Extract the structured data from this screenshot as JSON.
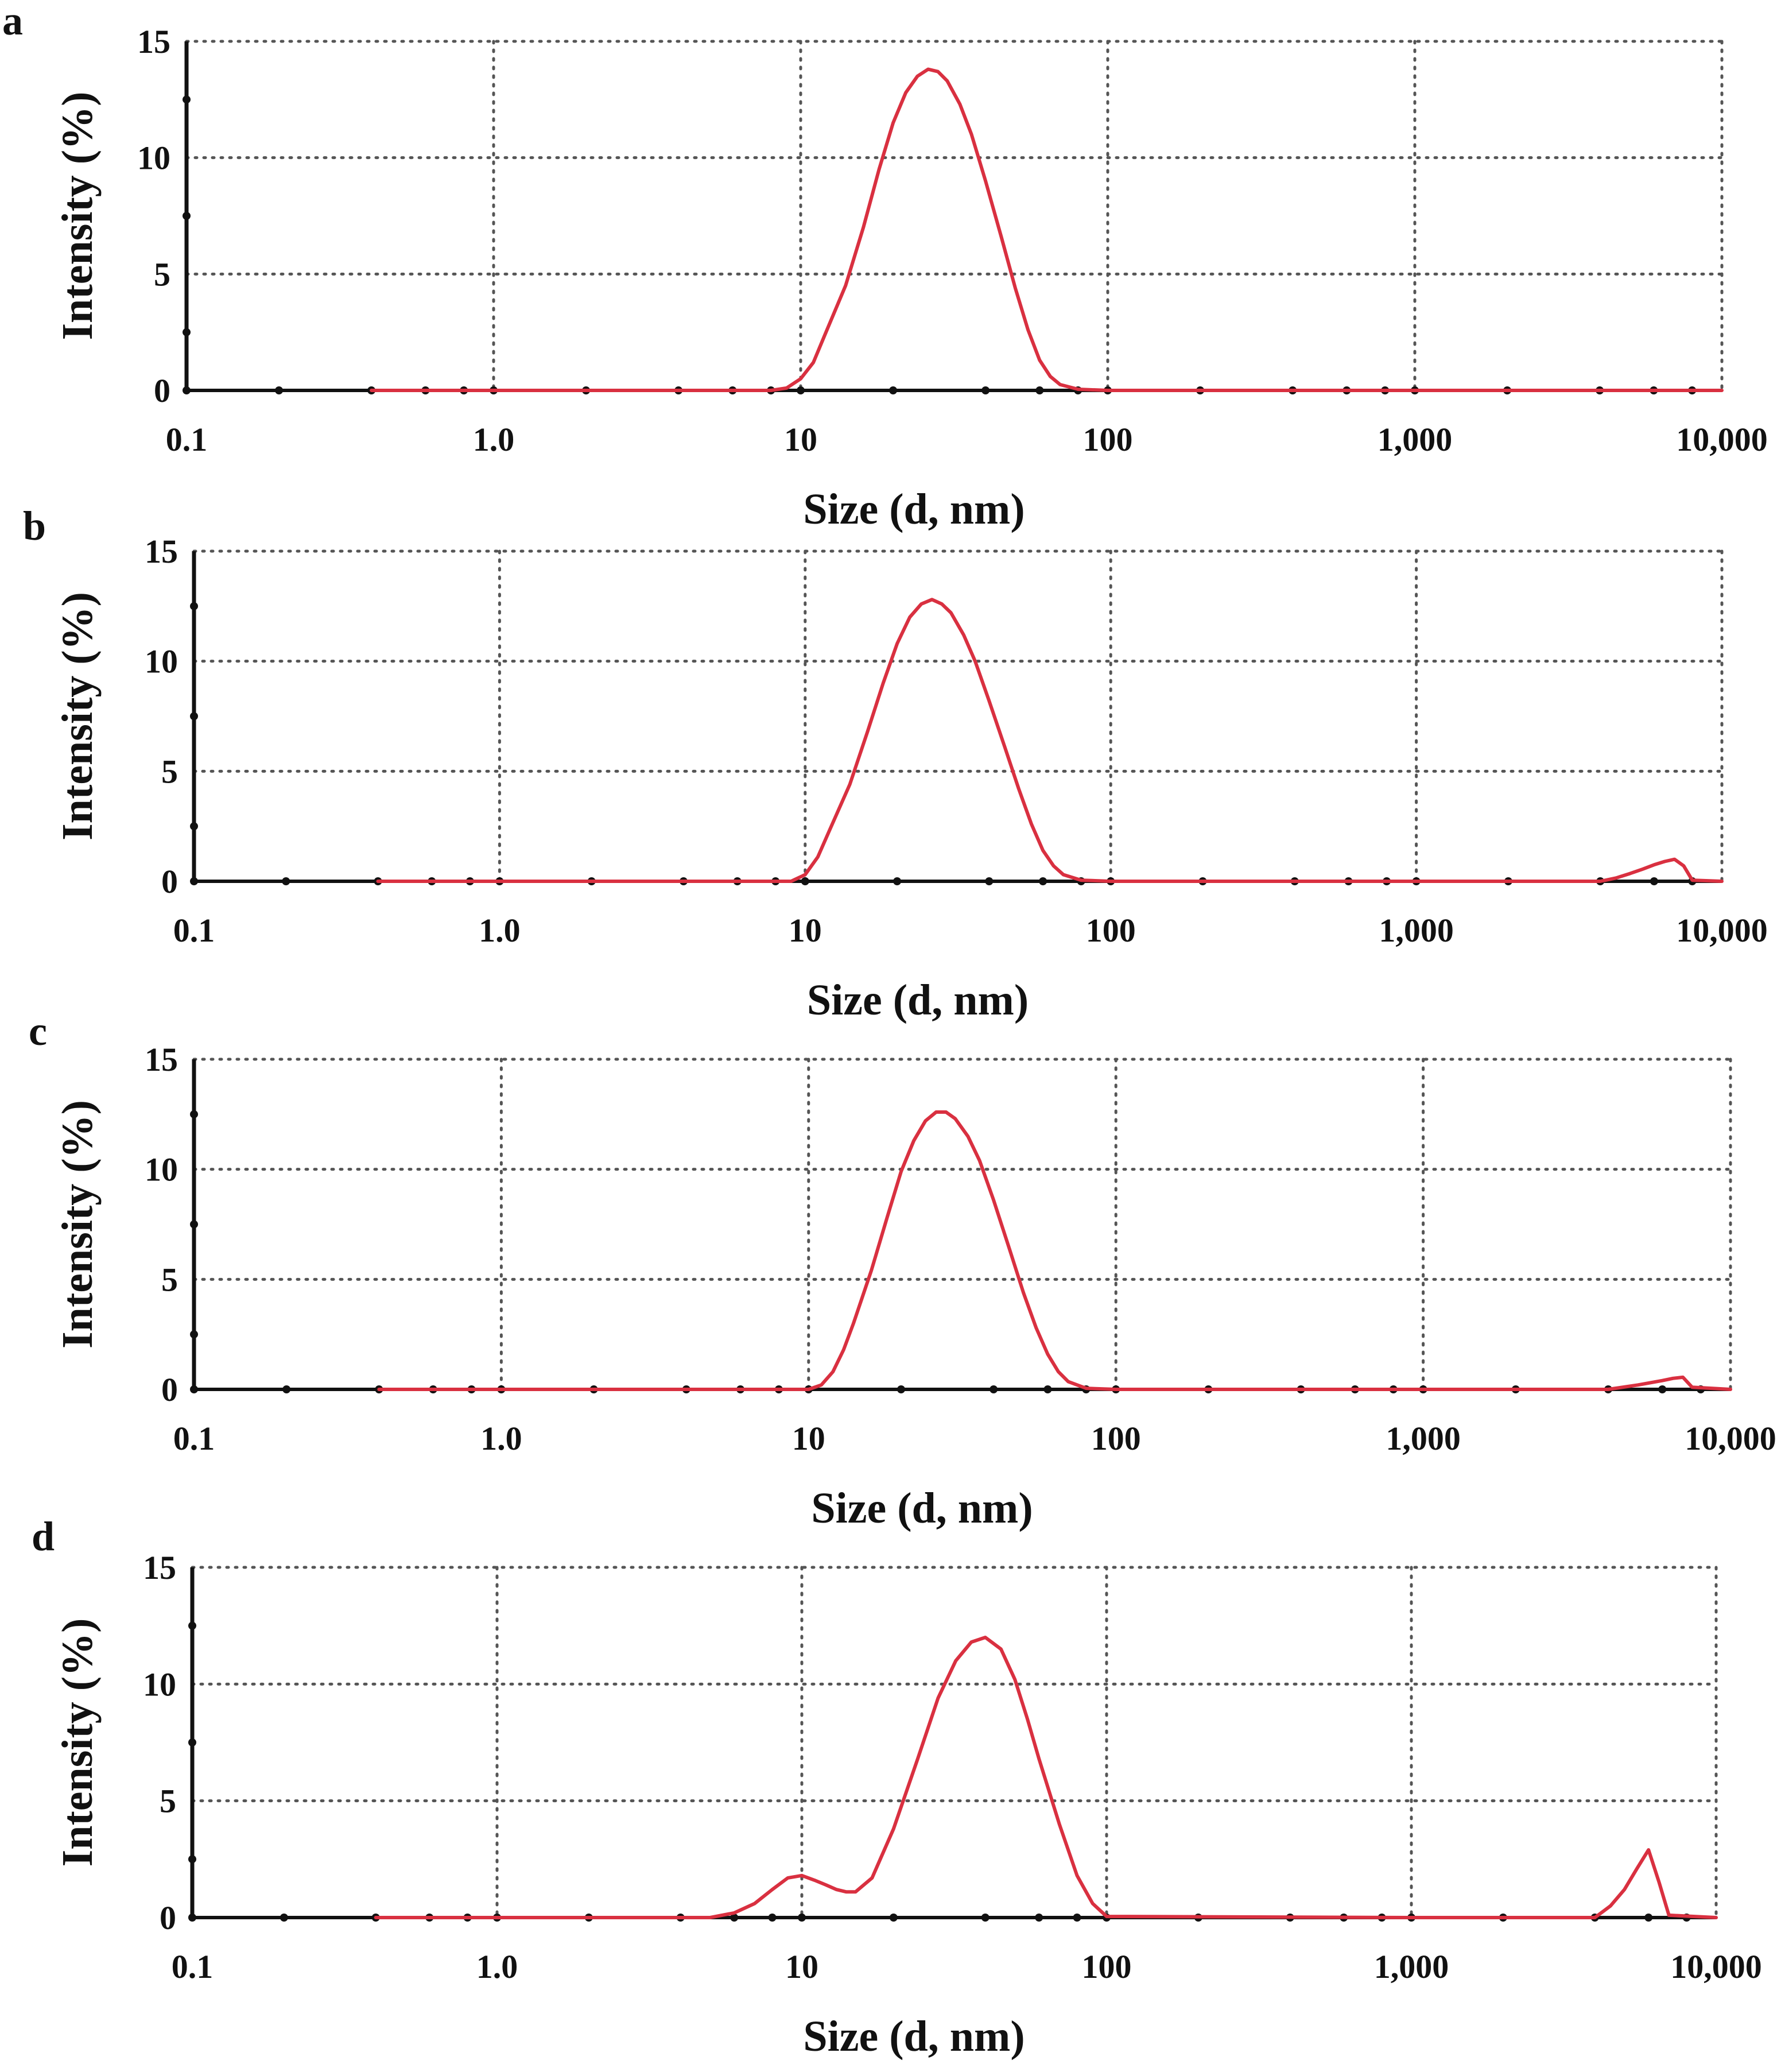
{
  "colors": {
    "curve": "#d93040",
    "axis": "#111111",
    "grid": "#555555"
  },
  "chart_data": [
    {
      "type": "line",
      "panel": "a",
      "xscale": "log",
      "xlabel": "Size (d, nm)",
      "ylabel": "Intensity (%)",
      "xlim": [
        0.1,
        10000
      ],
      "ylim": [
        0,
        15
      ],
      "xticks": [
        0.1,
        1,
        10,
        100,
        1000,
        10000
      ],
      "xtick_labels": [
        "0.1",
        "1.0",
        "10",
        "100",
        "1,000",
        "10,000"
      ],
      "yticks": [
        0,
        5,
        10,
        15
      ],
      "ytick_labels": [
        "0",
        "5",
        "10",
        "15"
      ],
      "grid": true,
      "series": [
        {
          "name": "Intensity",
          "x": [
            0.4,
            5,
            8,
            9,
            10,
            11,
            12,
            14,
            16,
            18,
            20,
            22,
            24,
            26,
            28,
            30,
            33,
            36,
            40,
            45,
            50,
            55,
            60,
            65,
            70,
            80,
            100,
            1000,
            10000
          ],
          "y": [
            0,
            0,
            0,
            0.1,
            0.5,
            1.2,
            2.4,
            4.5,
            7,
            9.5,
            11.5,
            12.8,
            13.5,
            13.8,
            13.7,
            13.3,
            12.3,
            11,
            9,
            6.6,
            4.4,
            2.6,
            1.3,
            0.6,
            0.25,
            0.05,
            0,
            0,
            0
          ]
        }
      ]
    },
    {
      "type": "line",
      "panel": "b",
      "xscale": "log",
      "xlabel": "Size (d, nm)",
      "ylabel": "Intensity (%)",
      "xlim": [
        0.1,
        10000
      ],
      "ylim": [
        0,
        15
      ],
      "xticks": [
        0.1,
        1,
        10,
        100,
        1000,
        10000
      ],
      "xtick_labels": [
        "0.1",
        "1.0",
        "10",
        "100",
        "1,000",
        "10,000"
      ],
      "yticks": [
        0,
        5,
        10,
        15
      ],
      "ytick_labels": [
        "0",
        "5",
        "10",
        "15"
      ],
      "grid": true,
      "series": [
        {
          "name": "Intensity",
          "x": [
            0.4,
            5,
            9,
            10,
            11,
            12,
            14,
            16,
            18,
            20,
            22,
            24,
            26,
            28,
            30,
            33,
            36,
            40,
            45,
            50,
            55,
            60,
            65,
            70,
            80,
            100,
            1000,
            4000,
            4500,
            5000,
            5500,
            6000,
            6500,
            7000,
            7500,
            8000,
            10000
          ],
          "y": [
            0,
            0,
            0,
            0.3,
            1.1,
            2.3,
            4.4,
            6.8,
            9,
            10.8,
            12,
            12.6,
            12.8,
            12.6,
            12.2,
            11.2,
            10,
            8.2,
            6.1,
            4.2,
            2.6,
            1.4,
            0.7,
            0.3,
            0.05,
            0,
            0,
            0,
            0.15,
            0.35,
            0.55,
            0.75,
            0.9,
            1,
            0.7,
            0.05,
            0
          ]
        }
      ]
    },
    {
      "type": "line",
      "panel": "c",
      "xscale": "log",
      "xlabel": "Size (d, nm)",
      "ylabel": "Intensity (%)",
      "xlim": [
        0.1,
        10000
      ],
      "ylim": [
        0,
        15
      ],
      "xticks": [
        0.1,
        1,
        10,
        100,
        1000,
        10000
      ],
      "xtick_labels": [
        "0.1",
        "1.0",
        "10",
        "100",
        "1,000",
        "10,000"
      ],
      "yticks": [
        0,
        5,
        10,
        15
      ],
      "ytick_labels": [
        "0",
        "5",
        "10",
        "15"
      ],
      "grid": true,
      "series": [
        {
          "name": "Intensity",
          "x": [
            0.4,
            5,
            10,
            11,
            12,
            13,
            14,
            16,
            18,
            20,
            22,
            24,
            26,
            28,
            30,
            33,
            36,
            40,
            45,
            50,
            55,
            60,
            65,
            70,
            80,
            100,
            1000,
            4000,
            5000,
            6000,
            6500,
            7000,
            7500,
            10000
          ],
          "y": [
            0,
            0,
            0,
            0.2,
            0.8,
            1.8,
            3,
            5.4,
            7.8,
            9.9,
            11.3,
            12.2,
            12.6,
            12.6,
            12.3,
            11.5,
            10.4,
            8.6,
            6.4,
            4.4,
            2.8,
            1.6,
            0.8,
            0.35,
            0.05,
            0,
            0,
            0,
            0.2,
            0.4,
            0.5,
            0.55,
            0.1,
            0
          ]
        }
      ]
    },
    {
      "type": "line",
      "panel": "d",
      "xscale": "log",
      "xlabel": "Size (d, nm)",
      "ylabel": "Intensity (%)",
      "xlim": [
        0.1,
        10000
      ],
      "ylim": [
        0,
        15
      ],
      "xticks": [
        0.1,
        1,
        10,
        100,
        1000,
        10000
      ],
      "xtick_labels": [
        "0.1",
        "1.0",
        "10",
        "100",
        "1,000",
        "10,000"
      ],
      "yticks": [
        0,
        5,
        10,
        15
      ],
      "ytick_labels": [
        "0",
        "5",
        "10",
        "15"
      ],
      "grid": true,
      "series": [
        {
          "name": "Intensity",
          "x": [
            0.4,
            5,
            6,
            7,
            8,
            9,
            10,
            11,
            12,
            13,
            14,
            15,
            17,
            20,
            24,
            28,
            32,
            36,
            40,
            45,
            50,
            55,
            60,
            70,
            80,
            90,
            100,
            1000,
            4000,
            4500,
            5000,
            5500,
            6000,
            6500,
            7000,
            10000
          ],
          "y": [
            0,
            0,
            0.2,
            0.6,
            1.2,
            1.7,
            1.8,
            1.6,
            1.4,
            1.2,
            1.1,
            1.1,
            1.7,
            3.8,
            6.8,
            9.4,
            11,
            11.8,
            12,
            11.5,
            10.2,
            8.5,
            6.8,
            4,
            1.8,
            0.6,
            0.05,
            0,
            0,
            0.5,
            1.2,
            2.1,
            2.9,
            1.5,
            0.1,
            0
          ]
        }
      ]
    }
  ]
}
